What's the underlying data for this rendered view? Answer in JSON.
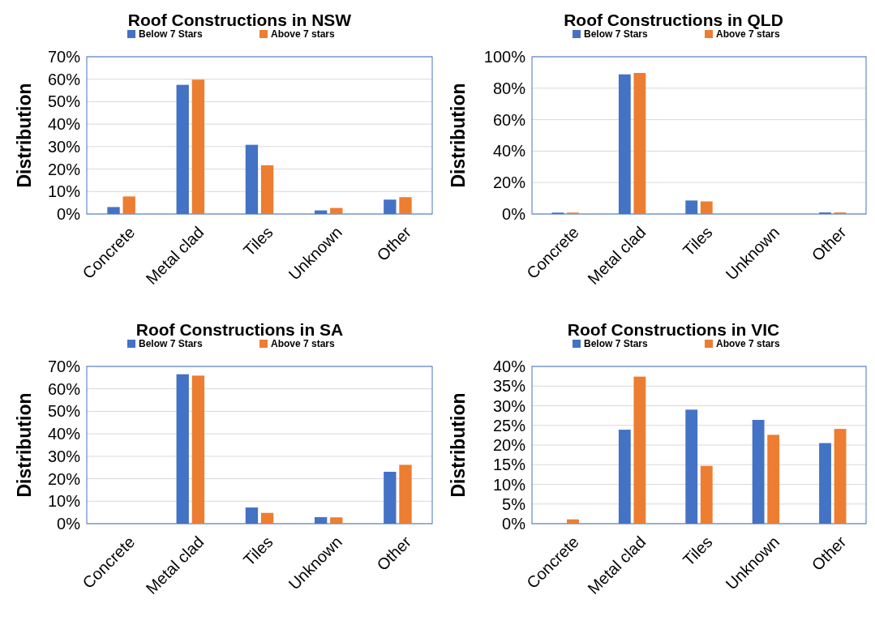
{
  "chart_data": [
    {
      "type": "bar",
      "title": "Roof Constructions in NSW",
      "ylabel": "Distribution",
      "categories": [
        "Concrete",
        "Metal clad",
        "Tiles",
        "Unknown",
        "Other"
      ],
      "series": [
        {
          "name": "Below 7 Stars",
          "color": "#4472c4",
          "values": [
            3.1,
            57.5,
            30.8,
            1.6,
            6.4
          ]
        },
        {
          "name": "Above 7 stars",
          "color": "#ed7d31",
          "values": [
            7.8,
            59.8,
            21.7,
            2.7,
            7.5
          ]
        }
      ],
      "ylim": [
        0,
        70
      ],
      "yticks": [
        {
          "value": 0,
          "label": "0%"
        },
        {
          "value": 10,
          "label": "10%"
        },
        {
          "value": 20,
          "label": "20%"
        },
        {
          "value": 30,
          "label": "30%"
        },
        {
          "value": 40,
          "label": "40%"
        },
        {
          "value": 50,
          "label": "50%"
        },
        {
          "value": 60,
          "label": "60%"
        },
        {
          "value": 70,
          "label": "70%"
        }
      ],
      "grid": "y",
      "legend": "top"
    },
    {
      "type": "bar",
      "title": "Roof Constructions in QLD",
      "ylabel": "Distribution",
      "categories": [
        "Concrete",
        "Metal clad",
        "Tiles",
        "Unknown",
        "Other"
      ],
      "series": [
        {
          "name": "Below 7 Stars",
          "color": "#4472c4",
          "values": [
            0.9,
            88.8,
            8.6,
            0,
            1
          ]
        },
        {
          "name": "Above 7 stars",
          "color": "#ed7d31",
          "values": [
            0.9,
            89.7,
            8,
            0,
            1
          ]
        }
      ],
      "ylim": [
        0,
        100
      ],
      "yticks": [
        {
          "value": 0,
          "label": "0%"
        },
        {
          "value": 20,
          "label": "20%"
        },
        {
          "value": 40,
          "label": "40%"
        },
        {
          "value": 60,
          "label": "60%"
        },
        {
          "value": 80,
          "label": "80%"
        },
        {
          "value": 100,
          "label": "100%"
        }
      ],
      "grid": "y",
      "legend": "top"
    },
    {
      "type": "bar",
      "title": "Roof Constructions in SA",
      "ylabel": "Distribution",
      "categories": [
        "Concrete",
        "Metal clad",
        "Tiles",
        "Unknown",
        "Other"
      ],
      "series": [
        {
          "name": "Below 7 Stars",
          "color": "#4472c4",
          "values": [
            0,
            66.5,
            7.2,
            2.9,
            23.1
          ]
        },
        {
          "name": "Above 7 stars",
          "color": "#ed7d31",
          "values": [
            0,
            65.9,
            4.8,
            2.8,
            26.2
          ]
        }
      ],
      "ylim": [
        0,
        70
      ],
      "yticks": [
        {
          "value": 0,
          "label": "0%"
        },
        {
          "value": 10,
          "label": "10%"
        },
        {
          "value": 20,
          "label": "20%"
        },
        {
          "value": 30,
          "label": "30%"
        },
        {
          "value": 40,
          "label": "40%"
        },
        {
          "value": 50,
          "label": "50%"
        },
        {
          "value": 60,
          "label": "60%"
        },
        {
          "value": 70,
          "label": "70%"
        }
      ],
      "grid": "y",
      "legend": "top"
    },
    {
      "type": "bar",
      "title": "Roof Constructions in VIC",
      "ylabel": "Distribution",
      "categories": [
        "Concrete",
        "Metal clad",
        "Tiles",
        "Unknown",
        "Other"
      ],
      "series": [
        {
          "name": "Below 7 Stars",
          "color": "#4472c4",
          "values": [
            0,
            23.9,
            29,
            26.4,
            20.5
          ]
        },
        {
          "name": "Above 7 stars",
          "color": "#ed7d31",
          "values": [
            1.1,
            37.4,
            14.7,
            22.6,
            24.1
          ]
        }
      ],
      "ylim": [
        0,
        40
      ],
      "yticks": [
        {
          "value": 0,
          "label": "0%"
        },
        {
          "value": 5,
          "label": "5%"
        },
        {
          "value": 10,
          "label": "10%"
        },
        {
          "value": 15,
          "label": "15%"
        },
        {
          "value": 20,
          "label": "20%"
        },
        {
          "value": 25,
          "label": "25%"
        },
        {
          "value": 30,
          "label": "30%"
        },
        {
          "value": 35,
          "label": "35%"
        },
        {
          "value": 40,
          "label": "40%"
        }
      ],
      "grid": "y",
      "legend": "top"
    }
  ]
}
